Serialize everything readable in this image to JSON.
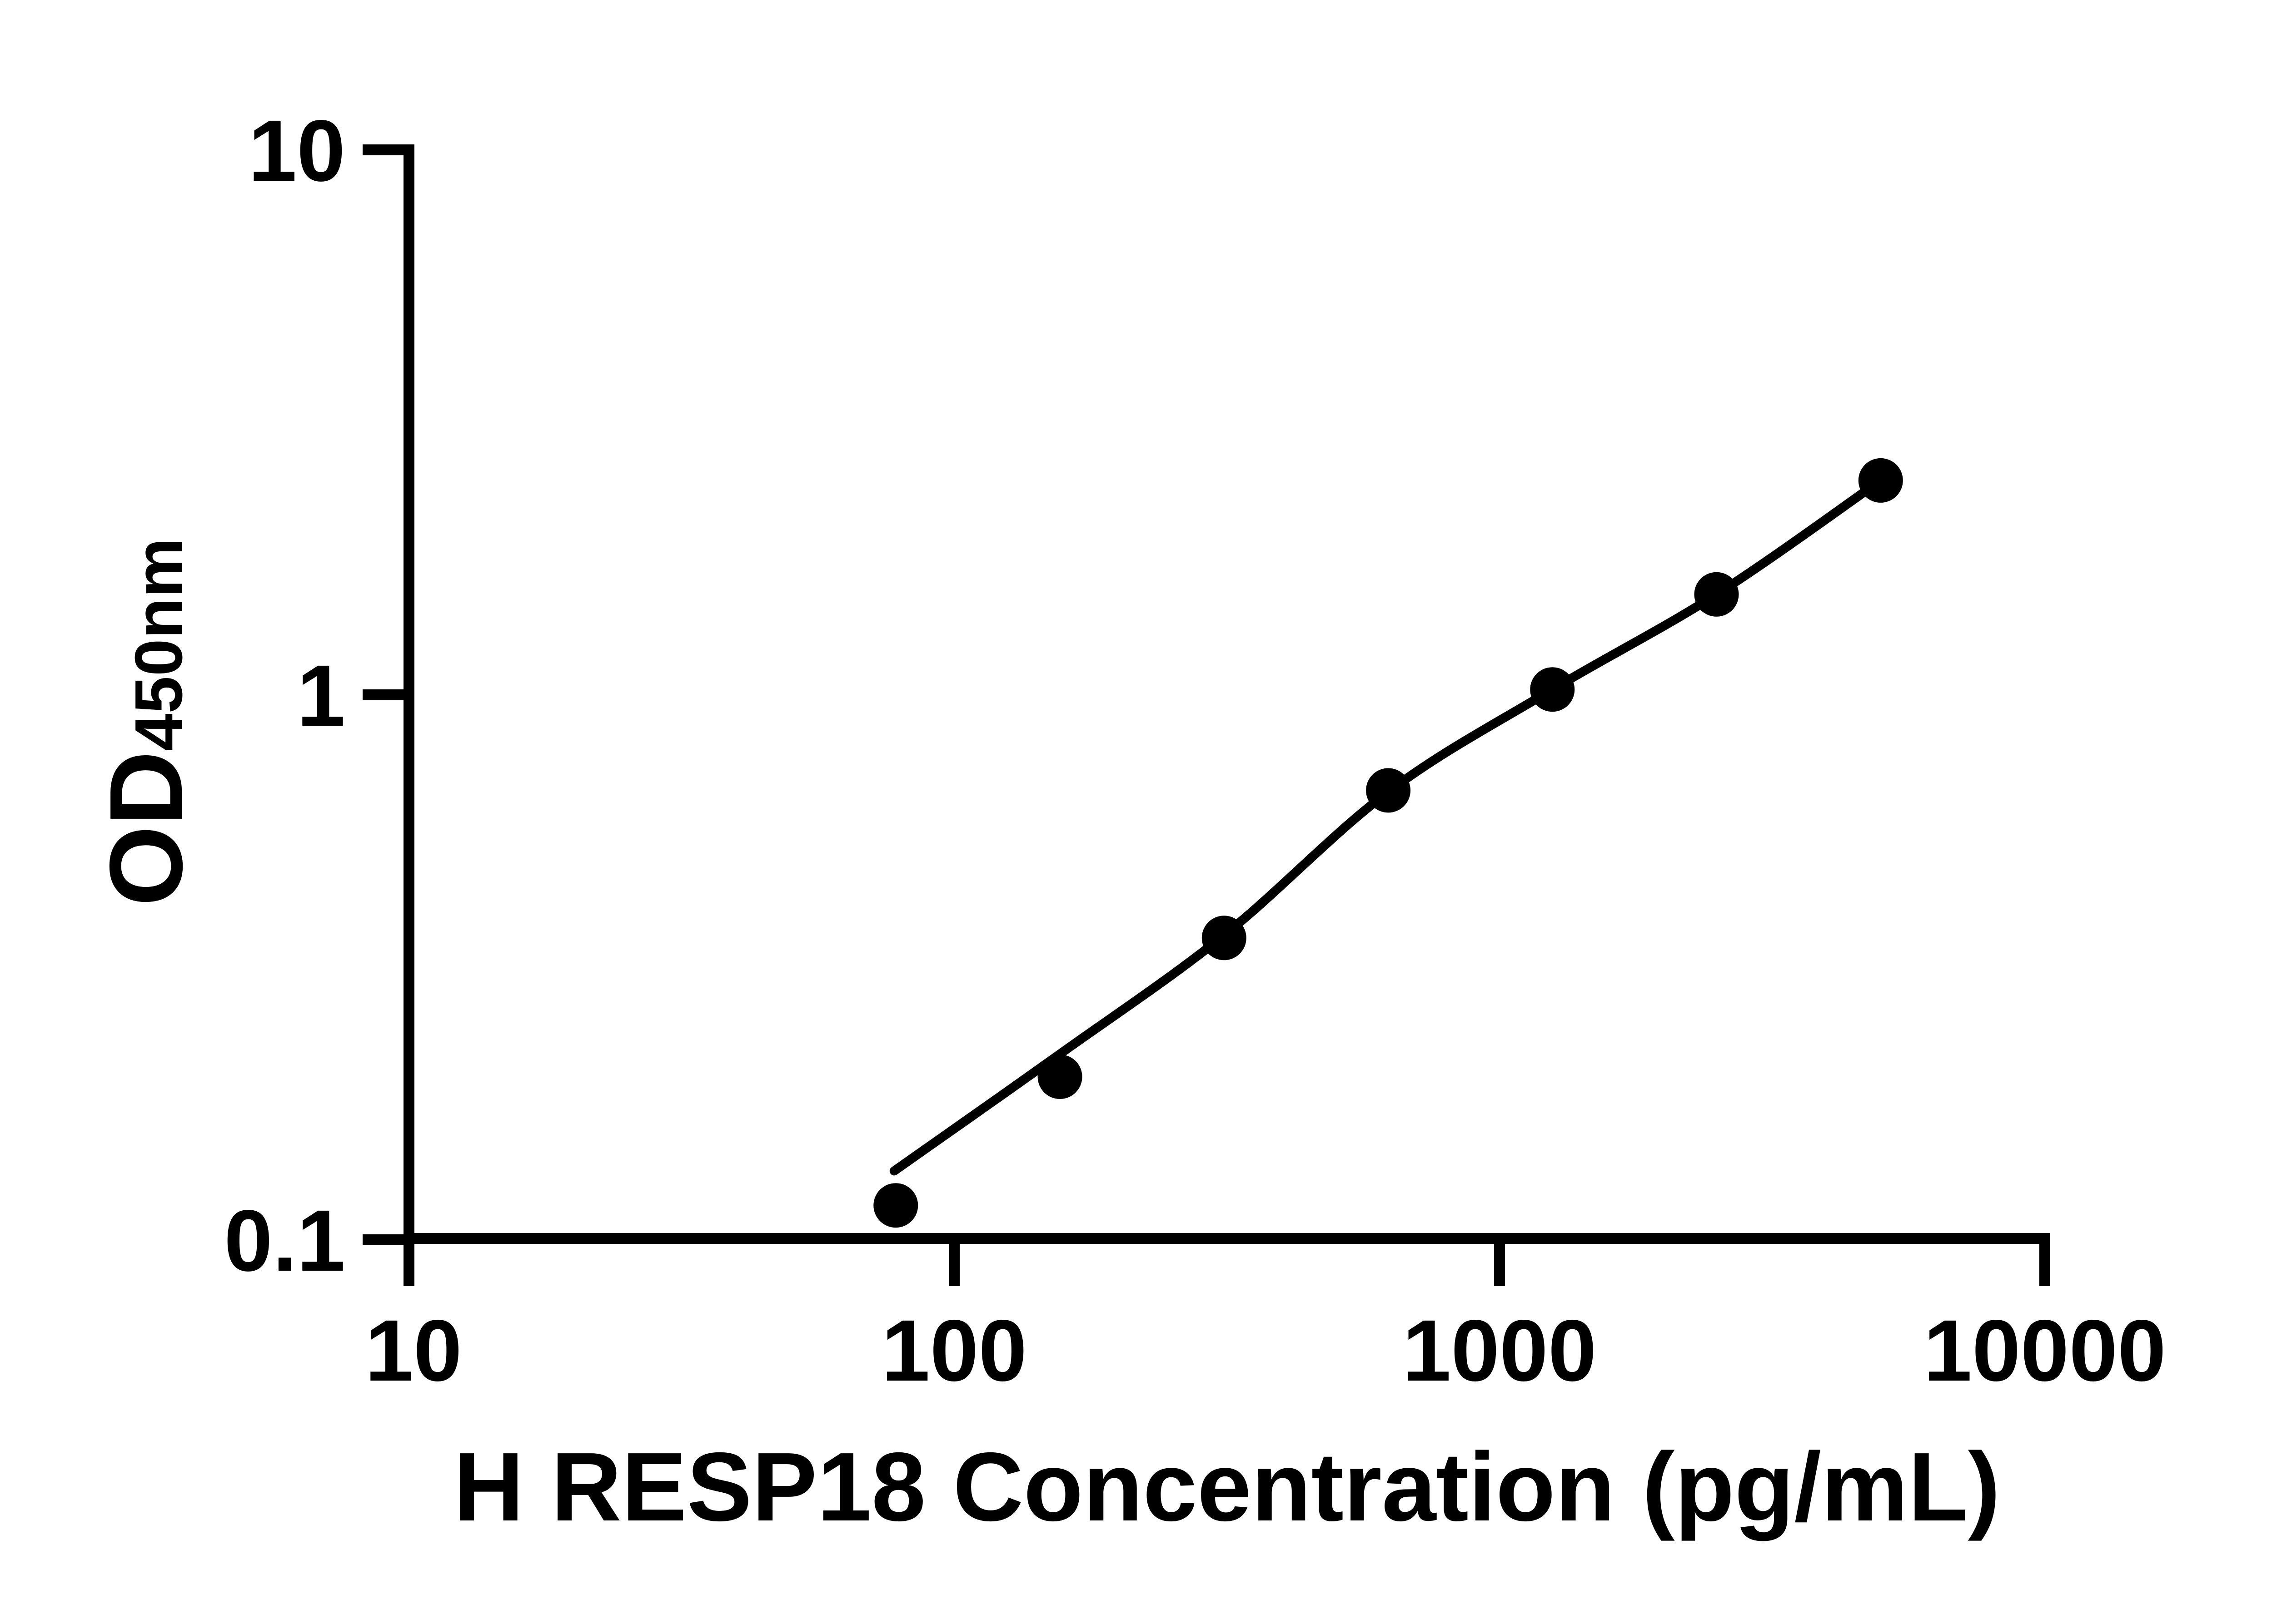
{
  "figure": {
    "background_color": "#ffffff",
    "foreground_color": "#000000"
  },
  "axes": {
    "x": {
      "title": "H RESP18 Concentration (pg/mL)",
      "scale": "log",
      "ticks": [
        {
          "label": "10",
          "value": 10
        },
        {
          "label": "100",
          "value": 100
        },
        {
          "label": "1000",
          "value": 1000
        },
        {
          "label": "10000",
          "value": 10000
        }
      ]
    },
    "y": {
      "title_main": "OD",
      "title_sub": "450nm",
      "scale": "log",
      "ticks": [
        {
          "label": "10",
          "value": 10
        },
        {
          "label": "1",
          "value": 1
        },
        {
          "label": "0.1",
          "value": 0.1
        }
      ]
    }
  },
  "chart_data": {
    "type": "scatter",
    "title": "",
    "xlabel": "H RESP18 Concentration (pg/mL)",
    "ylabel": "OD450nm",
    "x_scale": "log",
    "y_scale": "log",
    "xlim": [
      10,
      10000
    ],
    "ylim": [
      0.1,
      10
    ],
    "grid": false,
    "legend": "none",
    "marker_color": "#000000",
    "line_color": "#000000",
    "series": [
      {
        "name": "standard-curve-points",
        "x": [
          78.125,
          156.25,
          312.5,
          625,
          1250,
          2500,
          5000
        ],
        "y": [
          0.115,
          0.198,
          0.356,
          0.664,
          1.017,
          1.52,
          2.46
        ]
      }
    ],
    "trend_line": {
      "name": "fitted-curve",
      "points": [
        [
          77.6,
          0.133
        ],
        [
          156.25,
          0.218
        ],
        [
          312.5,
          0.36
        ],
        [
          625,
          0.66
        ],
        [
          1250,
          1.017
        ],
        [
          2500,
          1.52
        ],
        [
          5000,
          2.46
        ]
      ]
    }
  }
}
